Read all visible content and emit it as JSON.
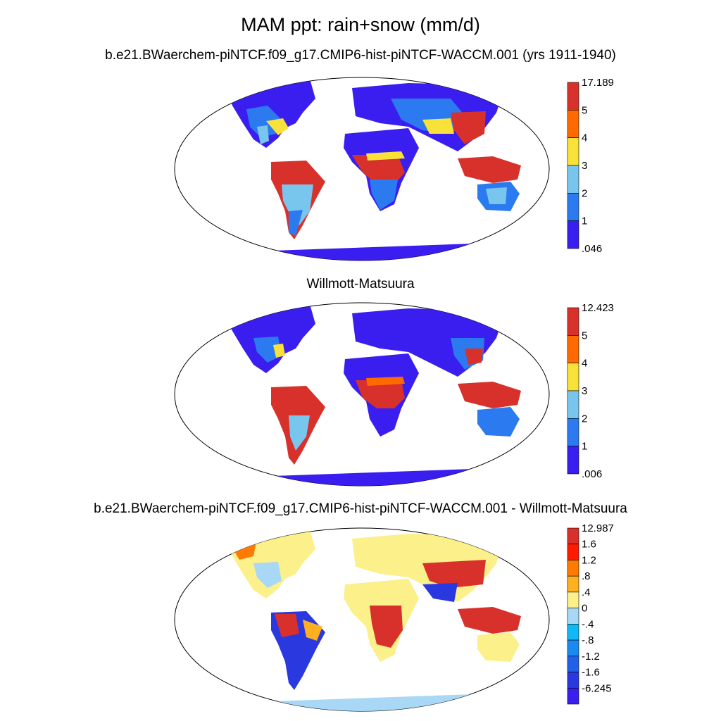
{
  "main_title": "MAM ppt: rain+snow (mm/d)",
  "panels": [
    {
      "title": "b.e21.BWaerchem-piNTCF.f09_g17.CMIP6-hist-piNTCF-WACCM.001 (yrs 1911-1940)",
      "colorbar": {
        "labels": [
          "17.189",
          "5",
          "4",
          "3",
          "2",
          "1",
          ".046"
        ],
        "colors": [
          "#d8312b",
          "#ff6a00",
          "#f8e23a",
          "#78c6ee",
          "#2b7af0",
          "#3a1ef0"
        ]
      }
    },
    {
      "title": "Willmott-Matsuura",
      "colorbar": {
        "labels": [
          "12.423",
          "5",
          "4",
          "3",
          "2",
          "1",
          ".006"
        ],
        "colors": [
          "#d8312b",
          "#ff6a00",
          "#f8e23a",
          "#78c6ee",
          "#2b7af0",
          "#3a1ef0"
        ]
      }
    },
    {
      "title": "b.e21.BWaerchem-piNTCF.f09_g17.CMIP6-hist-piNTCF-WACCM.001 - Willmott-Matsuura",
      "colorbar": {
        "labels": [
          "12.987",
          "1.6",
          "1.2",
          ".8",
          ".4",
          "0",
          "-.4",
          "-.8",
          "-1.2",
          "-1.6",
          "-6.245"
        ],
        "colors": [
          "#d8312b",
          "#ff1a00",
          "#ff7a00",
          "#ffb020",
          "#fbf08a",
          "#a8d8f5",
          "#12b8f5",
          "#1a8af0",
          "#2160e8",
          "#2a38e0",
          "#3a1ef0"
        ]
      }
    }
  ]
}
